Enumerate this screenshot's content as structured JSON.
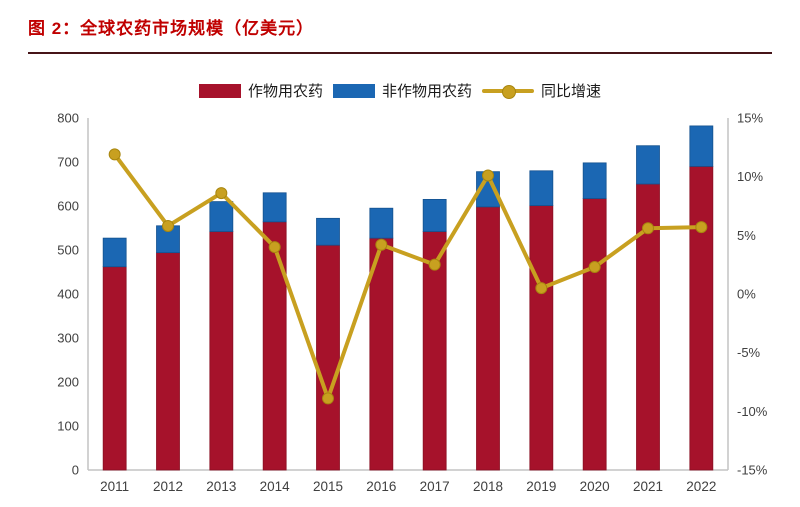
{
  "header": {
    "title": "图 2：全球农药市场规模（亿美元）"
  },
  "legend": {
    "crop_label": "作物用农药",
    "noncrop_label": "非作物用农药",
    "growth_label": "同比增速"
  },
  "colors": {
    "crop": "#A6122B",
    "crop_edge": "#8A0F22",
    "noncrop": "#1B67B3",
    "noncrop_edge": "#14528F",
    "growth": "#C8A020",
    "growth_edge": "#A8860F",
    "title": "#C00000",
    "rule": "#461418",
    "axis_line": "#C3C3C3",
    "tick_text": "#404040"
  },
  "chart_data": {
    "type": "bar",
    "subtype": "stacked-bars-with-line",
    "title": "全球农药市场规模（亿美元）",
    "categories": [
      "2011",
      "2012",
      "2013",
      "2014",
      "2015",
      "2016",
      "2017",
      "2018",
      "2019",
      "2020",
      "2021",
      "2022"
    ],
    "series": [
      {
        "name": "作物用农药",
        "type": "bar",
        "stack": "total",
        "axis": "left",
        "values": [
          462,
          494,
          542,
          564,
          511,
          527,
          542,
          598,
          601,
          617,
          650,
          690
        ]
      },
      {
        "name": "非作物用农药",
        "type": "bar",
        "stack": "total",
        "axis": "left",
        "values": [
          65,
          61,
          68,
          66,
          61,
          68,
          73,
          80,
          79,
          81,
          87,
          92
        ]
      },
      {
        "name": "同比增速",
        "type": "line",
        "axis": "right",
        "unit": "%",
        "values": [
          11.9,
          5.8,
          8.6,
          4.0,
          -8.9,
          4.2,
          2.5,
          10.1,
          0.5,
          2.3,
          5.6,
          5.7
        ]
      }
    ],
    "stack_totals": [
      527,
      555,
      610,
      630,
      572,
      595,
      615,
      678,
      680,
      698,
      737,
      782
    ],
    "left_axis": {
      "label": "",
      "range": [
        0,
        800
      ],
      "ticks": [
        800,
        700,
        600,
        500,
        400,
        300,
        200,
        100,
        0
      ]
    },
    "right_axis": {
      "label": "",
      "range": [
        -15,
        15
      ],
      "ticks": [
        "15%",
        "10%",
        "5%",
        "0%",
        "-5%",
        "-10%",
        "-15%"
      ]
    },
    "grid": false,
    "legend_position": "top"
  }
}
